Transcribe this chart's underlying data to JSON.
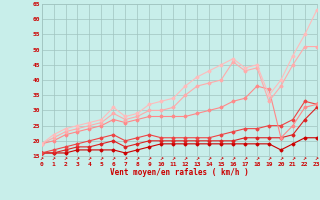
{
  "xlabel": "Vent moyen/en rafales ( km/h )",
  "xlim": [
    0,
    23
  ],
  "ylim": [
    15,
    65
  ],
  "xticks": [
    0,
    1,
    2,
    3,
    4,
    5,
    6,
    7,
    8,
    9,
    10,
    11,
    12,
    13,
    14,
    15,
    16,
    17,
    18,
    19,
    20,
    21,
    22,
    23
  ],
  "yticks": [
    15,
    20,
    25,
    30,
    35,
    40,
    45,
    50,
    55,
    60,
    65
  ],
  "bg_color": "#c8eeea",
  "grid_color": "#a0c4c0",
  "x": [
    0,
    1,
    2,
    3,
    4,
    5,
    6,
    7,
    8,
    9,
    10,
    11,
    12,
    13,
    14,
    15,
    16,
    17,
    18,
    19,
    20,
    21,
    22,
    23
  ],
  "series": [
    {
      "y": [
        16,
        16,
        16,
        17,
        17,
        17,
        17,
        16,
        17,
        18,
        19,
        19,
        19,
        19,
        19,
        19,
        19,
        19,
        19,
        19,
        17,
        19,
        21,
        21
      ],
      "color": "#cc0000",
      "lw": 0.8,
      "marker": "D",
      "ms": 1.5
    },
    {
      "y": [
        16,
        16,
        17,
        18,
        18,
        19,
        20,
        18,
        19,
        20,
        20,
        20,
        20,
        20,
        20,
        20,
        20,
        21,
        21,
        21,
        21,
        22,
        27,
        31
      ],
      "color": "#dd2222",
      "lw": 0.8,
      "marker": "D",
      "ms": 1.5
    },
    {
      "y": [
        16,
        17,
        18,
        19,
        20,
        21,
        22,
        20,
        21,
        22,
        21,
        21,
        21,
        21,
        21,
        22,
        23,
        24,
        24,
        25,
        25,
        27,
        33,
        32
      ],
      "color": "#ee4444",
      "lw": 0.8,
      "marker": "D",
      "ms": 1.5
    },
    {
      "y": [
        19,
        20,
        22,
        23,
        24,
        25,
        27,
        26,
        27,
        28,
        28,
        28,
        28,
        29,
        30,
        31,
        33,
        34,
        38,
        37,
        21,
        25,
        31,
        32
      ],
      "color": "#ff8888",
      "lw": 0.8,
      "marker": "D",
      "ms": 1.5
    },
    {
      "y": [
        19,
        21,
        23,
        24,
        25,
        26,
        29,
        27,
        28,
        30,
        30,
        31,
        35,
        38,
        39,
        40,
        46,
        43,
        44,
        33,
        38,
        45,
        51,
        51
      ],
      "color": "#ffaaaa",
      "lw": 0.8,
      "marker": "D",
      "ms": 1.5
    },
    {
      "y": [
        19,
        22,
        24,
        25,
        26,
        27,
        31,
        28,
        29,
        32,
        33,
        34,
        38,
        41,
        43,
        45,
        47,
        44,
        45,
        35,
        40,
        48,
        55,
        63
      ],
      "color": "#ffbbbb",
      "lw": 0.8,
      "marker": "D",
      "ms": 1.5
    }
  ],
  "tick_label_fontsize": 4.5,
  "axis_label_fontsize": 5.5,
  "label_color": "#cc0000",
  "arrow_symbol": "↗"
}
